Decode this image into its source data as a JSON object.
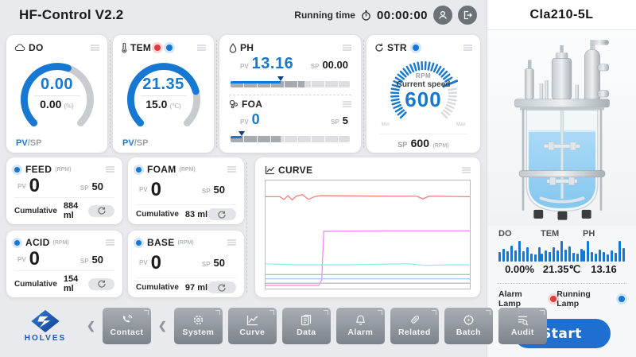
{
  "topbar": {
    "title": "HF-Control V2.2",
    "running_label": "Running time",
    "time": "00:00:00"
  },
  "gauges": [
    {
      "title": "DO",
      "pv": "0.00",
      "sp": "0.00",
      "unit": "(%)",
      "pv_label": "PV",
      "sp_label": "/SP",
      "percent": 57
    },
    {
      "title": "TEM",
      "pv": "21.35",
      "sp": "15.0",
      "unit": "(℃)",
      "pv_label": "PV",
      "sp_label": "/SP",
      "percent": 78
    }
  ],
  "ph": {
    "title": "PH",
    "pv_label": "PV",
    "pv": "13.16",
    "sp_label": "SP",
    "sp": "00.00",
    "blue_pct": 42,
    "dark_pct": 62
  },
  "foa": {
    "title": "FOA",
    "pv_label": "PV",
    "pv": "0",
    "sp_label": "SP",
    "sp": "5",
    "blue_pct": 9,
    "dark_pct": 42
  },
  "str": {
    "title": "STR",
    "rpm_label": "RPM",
    "speed_label": "Current speed",
    "value": "600",
    "sp_label": "SP",
    "sp_value": "600",
    "sp_unit": "(RPM)",
    "min": "Min",
    "max": "Max",
    "percent": 75
  },
  "pumps": [
    {
      "title": "FEED",
      "unit": "(RPM)",
      "pv_label": "PV",
      "pv": "0",
      "sp_label": "SP",
      "sp": "50",
      "cum_label": "Cumulative",
      "cum": "884 ml"
    },
    {
      "title": "FOAM",
      "unit": "(RPM)",
      "pv_label": "PV",
      "pv": "0",
      "sp_label": "SP",
      "sp": "50",
      "cum_label": "Cumulative",
      "cum": "83 ml"
    },
    {
      "title": "ACID",
      "unit": "(RPM)",
      "pv_label": "PV",
      "pv": "0",
      "sp_label": "SP",
      "sp": "50",
      "cum_label": "Cumulative",
      "cum": "154 ml"
    },
    {
      "title": "BASE",
      "unit": "(RPM)",
      "pv_label": "PV",
      "pv": "0",
      "sp_label": "SP",
      "sp": "50",
      "cum_label": "Cumulative",
      "cum": "97 ml"
    }
  ],
  "curve": {
    "title": "CURVE"
  },
  "chart_data": {
    "type": "line",
    "title": "CURVE",
    "xlabel": "",
    "ylabel": "",
    "grid": false,
    "legend": "none",
    "series": [
      {
        "name": "red-line",
        "color": "#f07d7d",
        "points": [
          [
            0,
            15
          ],
          [
            7,
            15
          ],
          [
            9,
            17.5
          ],
          [
            11,
            14
          ],
          [
            13,
            18
          ],
          [
            15,
            14.5
          ],
          [
            18,
            13
          ],
          [
            21,
            17.5
          ],
          [
            24,
            15
          ],
          [
            27,
            14
          ],
          [
            60,
            14.5
          ],
          [
            74,
            14.5
          ],
          [
            77,
            17
          ],
          [
            80,
            14.5
          ],
          [
            100,
            15
          ]
        ]
      },
      {
        "name": "magenta-line",
        "color": "#f08cf0",
        "points": [
          [
            0,
            97
          ],
          [
            26,
            97
          ],
          [
            27.5,
            92
          ],
          [
            28.5,
            47
          ],
          [
            60,
            46.5
          ],
          [
            100,
            46.5
          ]
        ]
      },
      {
        "name": "cyan-line",
        "color": "#8ceeee",
        "points": [
          [
            0,
            77
          ],
          [
            14,
            78
          ],
          [
            40,
            78
          ],
          [
            55,
            77.5
          ],
          [
            70,
            77
          ],
          [
            78,
            78.5
          ],
          [
            90,
            78
          ],
          [
            100,
            78
          ]
        ]
      },
      {
        "name": "green-line",
        "color": "#8fdc8f",
        "points": [
          [
            0,
            87
          ],
          [
            100,
            87
          ]
        ]
      },
      {
        "name": "blue-line",
        "color": "#a9c6e8",
        "points": [
          [
            0,
            91
          ],
          [
            100,
            91
          ]
        ]
      },
      {
        "name": "gray-line",
        "color": "#b9bcbf",
        "points": [
          [
            0,
            95
          ],
          [
            100,
            95
          ]
        ]
      }
    ]
  },
  "nav": {
    "brand": "HOLVES",
    "contact": "Contact",
    "items": [
      {
        "label": "System"
      },
      {
        "label": "Curve"
      },
      {
        "label": "Data"
      },
      {
        "label": "Alarm"
      },
      {
        "label": "Related"
      },
      {
        "label": "Batch"
      },
      {
        "label": "Audit"
      }
    ]
  },
  "side": {
    "title": "Cla210-5L",
    "sensors": [
      {
        "label": "DO",
        "value": "0.00%",
        "bars": [
          45,
          62,
          50,
          78,
          55,
          100,
          50,
          70,
          40,
          35,
          70
        ]
      },
      {
        "label": "TEM",
        "value": "21.35℃",
        "bars": [
          40,
          55,
          48,
          70,
          52,
          100,
          58,
          72,
          42,
          38,
          62
        ]
      },
      {
        "label": "PH",
        "value": "13.16",
        "bars": [
          55,
          100,
          48,
          40,
          58,
          46,
          36,
          52,
          42,
          100,
          65
        ]
      }
    ],
    "alarm_label": "Alarm Lamp",
    "running_label": "Running Lamp",
    "start": "Start"
  }
}
